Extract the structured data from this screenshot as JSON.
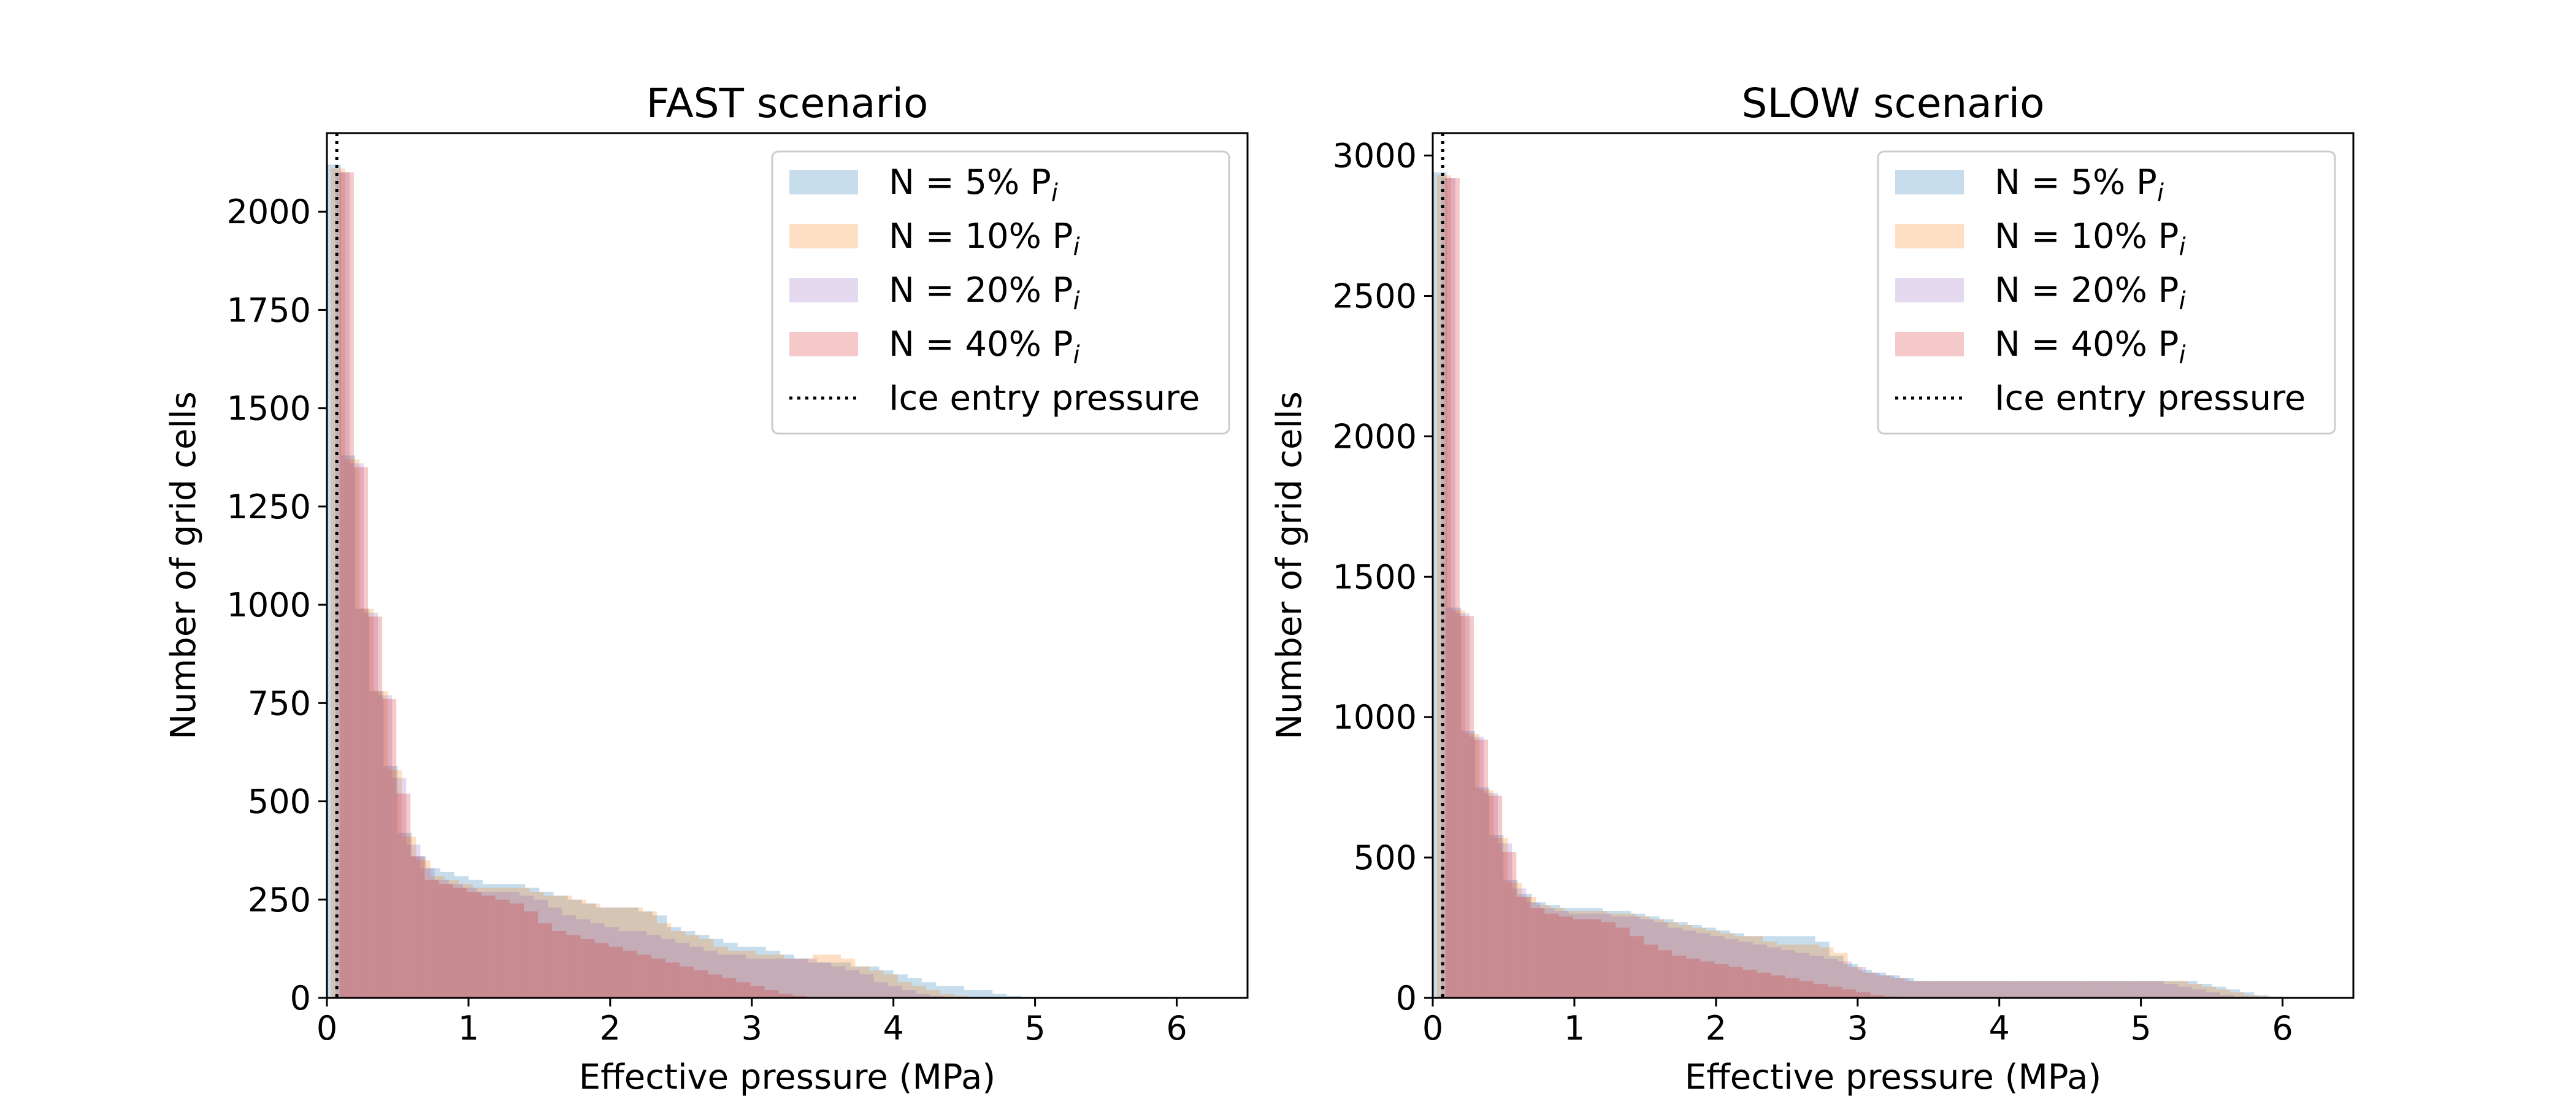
{
  "chart_data": [
    {
      "type": "histogram",
      "title": "FAST scenario",
      "xlabel": "Effective pressure (MPa)",
      "ylabel": "Number of grid cells",
      "xlim": [
        0,
        6.5
      ],
      "ylim": [
        0,
        2200
      ],
      "xticks": [
        0,
        1,
        2,
        3,
        4,
        5,
        6
      ],
      "yticks": [
        0,
        250,
        500,
        750,
        1000,
        1250,
        1500,
        1750,
        2000
      ],
      "legend_position": "upper right",
      "ice_entry_pressure": 0.07,
      "series": [
        {
          "name": "N = 5% P",
          "color": "#1f77b4",
          "alpha": 0.25,
          "bin_start": 0,
          "bin_width": 0.1,
          "values": [
            2120,
            1380,
            990,
            780,
            590,
            420,
            360,
            330,
            320,
            310,
            300,
            290,
            290,
            290,
            280,
            270,
            260,
            250,
            240,
            230,
            230,
            230,
            220,
            210,
            180,
            170,
            160,
            150,
            140,
            130,
            130,
            120,
            110,
            100,
            90,
            90,
            90,
            80,
            80,
            70,
            60,
            50,
            40,
            30,
            30,
            20,
            20,
            10,
            5,
            2,
            0,
            0,
            0,
            0,
            0,
            0,
            0,
            0,
            0,
            0,
            0,
            0,
            0,
            0,
            0
          ]
        },
        {
          "name": "N = 10% P",
          "color": "#ff7f0e",
          "alpha": 0.25,
          "bin_start": 0.03,
          "bin_width": 0.1,
          "values": [
            2110,
            1370,
            990,
            780,
            580,
            410,
            350,
            310,
            300,
            290,
            280,
            280,
            280,
            280,
            270,
            260,
            260,
            250,
            240,
            230,
            230,
            230,
            220,
            190,
            170,
            160,
            150,
            130,
            120,
            120,
            110,
            110,
            100,
            100,
            110,
            110,
            100,
            80,
            70,
            60,
            40,
            30,
            20,
            10,
            5,
            2,
            0,
            0,
            0,
            0,
            0,
            0,
            0,
            0,
            0,
            0,
            0,
            0,
            0,
            0,
            0,
            0,
            0,
            0,
            0
          ]
        },
        {
          "name": "N = 20% P",
          "color": "#9467bd",
          "alpha": 0.25,
          "bin_start": 0.06,
          "bin_width": 0.1,
          "values": [
            2100,
            1360,
            980,
            770,
            560,
            390,
            330,
            300,
            290,
            280,
            270,
            270,
            270,
            260,
            250,
            230,
            210,
            200,
            190,
            180,
            170,
            170,
            160,
            150,
            140,
            130,
            120,
            110,
            110,
            100,
            100,
            100,
            100,
            100,
            90,
            80,
            70,
            60,
            40,
            30,
            20,
            10,
            5,
            2,
            0,
            0,
            0,
            0,
            0,
            0,
            0,
            0,
            0,
            0,
            0,
            0,
            0,
            0,
            0,
            0,
            0,
            0,
            0,
            0,
            0
          ]
        },
        {
          "name": "N = 40% P",
          "color": "#d62728",
          "alpha": 0.25,
          "bin_start": 0.09,
          "bin_width": 0.1,
          "values": [
            2100,
            1350,
            970,
            760,
            520,
            360,
            300,
            290,
            280,
            270,
            260,
            250,
            240,
            220,
            190,
            170,
            160,
            150,
            140,
            130,
            120,
            110,
            100,
            90,
            80,
            70,
            60,
            50,
            40,
            30,
            20,
            10,
            5,
            2,
            0,
            0,
            0,
            0,
            0,
            0,
            0,
            0,
            0,
            0,
            0,
            0,
            0,
            0,
            0,
            0,
            0,
            0,
            0,
            0,
            0,
            0,
            0,
            0,
            0,
            0,
            0,
            0,
            0,
            0,
            0
          ]
        }
      ],
      "legend_reference": "Ice entry pressure"
    },
    {
      "type": "histogram",
      "title": "SLOW scenario",
      "xlabel": "Effective pressure (MPa)",
      "ylabel": "Number of grid cells",
      "xlim": [
        0,
        6.5
      ],
      "ylim": [
        0,
        3080
      ],
      "xticks": [
        0,
        1,
        2,
        3,
        4,
        5,
        6
      ],
      "yticks": [
        0,
        500,
        1000,
        1500,
        2000,
        2500,
        3000
      ],
      "legend_position": "upper right",
      "ice_entry_pressure": 0.07,
      "series": [
        {
          "name": "N = 5% P",
          "color": "#1f77b4",
          "alpha": 0.25,
          "bin_start": 0,
          "bin_width": 0.1,
          "values": [
            2940,
            1390,
            950,
            750,
            580,
            420,
            370,
            340,
            330,
            320,
            320,
            320,
            310,
            310,
            300,
            290,
            280,
            270,
            260,
            250,
            240,
            230,
            220,
            220,
            220,
            220,
            220,
            200,
            150,
            120,
            100,
            90,
            80,
            70,
            60,
            60,
            60,
            60,
            60,
            60,
            60,
            60,
            60,
            60,
            60,
            60,
            60,
            60,
            60,
            60,
            60,
            60,
            60,
            60,
            50,
            40,
            30,
            20,
            10,
            5,
            2,
            0,
            0,
            0,
            0
          ]
        },
        {
          "name": "N = 10% P",
          "color": "#ff7f0e",
          "alpha": 0.25,
          "bin_start": 0.03,
          "bin_width": 0.1,
          "values": [
            2930,
            1380,
            940,
            740,
            570,
            410,
            360,
            330,
            320,
            310,
            310,
            310,
            300,
            300,
            290,
            280,
            270,
            260,
            250,
            240,
            230,
            220,
            220,
            200,
            190,
            190,
            190,
            180,
            160,
            110,
            90,
            80,
            70,
            60,
            60,
            60,
            60,
            60,
            60,
            60,
            60,
            60,
            60,
            60,
            60,
            60,
            60,
            60,
            60,
            60,
            60,
            60,
            60,
            50,
            40,
            30,
            20,
            10,
            5,
            2,
            0,
            0,
            0,
            0,
            0
          ]
        },
        {
          "name": "N = 20% P",
          "color": "#9467bd",
          "alpha": 0.25,
          "bin_start": 0.06,
          "bin_width": 0.1,
          "values": [
            2920,
            1370,
            930,
            730,
            550,
            390,
            340,
            320,
            310,
            300,
            300,
            300,
            290,
            290,
            280,
            270,
            250,
            240,
            230,
            220,
            210,
            200,
            190,
            180,
            170,
            160,
            150,
            140,
            130,
            110,
            90,
            80,
            70,
            60,
            60,
            60,
            60,
            60,
            60,
            60,
            60,
            60,
            60,
            60,
            60,
            60,
            60,
            60,
            60,
            60,
            60,
            50,
            40,
            30,
            20,
            10,
            5,
            2,
            0,
            0,
            0,
            0,
            0,
            0,
            0
          ]
        },
        {
          "name": "N = 40% P",
          "color": "#d62728",
          "alpha": 0.25,
          "bin_start": 0.09,
          "bin_width": 0.1,
          "values": [
            2920,
            1360,
            920,
            720,
            520,
            360,
            320,
            300,
            290,
            280,
            280,
            270,
            250,
            220,
            190,
            170,
            150,
            140,
            130,
            120,
            110,
            100,
            90,
            80,
            70,
            60,
            50,
            40,
            30,
            20,
            10,
            5,
            2,
            0,
            0,
            0,
            0,
            0,
            0,
            0,
            0,
            0,
            0,
            0,
            0,
            0,
            0,
            0,
            0,
            0,
            0,
            0,
            0,
            0,
            0,
            0,
            0,
            0,
            0,
            0,
            0,
            0,
            0,
            0,
            0
          ]
        }
      ],
      "legend_reference": "Ice entry pressure"
    }
  ],
  "legend_subscript": "i"
}
